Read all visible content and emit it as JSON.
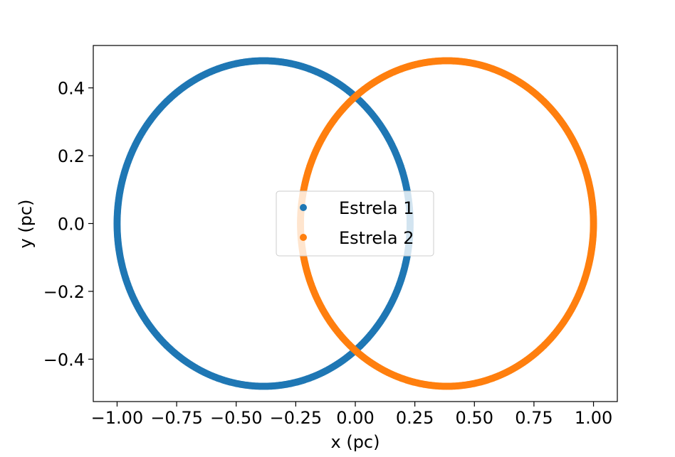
{
  "chart_data": {
    "type": "scatter",
    "title": "",
    "xlabel": "x (pc)",
    "ylabel": "y (pc)",
    "xlim": [
      -1.1,
      1.1
    ],
    "ylim": [
      -0.525,
      0.525
    ],
    "xticks": [
      -1.0,
      -0.75,
      -0.5,
      -0.25,
      0.0,
      0.25,
      0.5,
      0.75,
      1.0
    ],
    "xtick_labels": [
      "−1.00",
      "−0.75",
      "−0.50",
      "−0.25",
      "0.00",
      "0.25",
      "0.50",
      "0.75",
      "1.00"
    ],
    "yticks": [
      -0.4,
      -0.2,
      0.0,
      0.2,
      0.4
    ],
    "ytick_labels": [
      "−0.4",
      "−0.2",
      "0.0",
      "0.2",
      "0.4"
    ],
    "grid": false,
    "legend_position": "center",
    "series": [
      {
        "name": "Estrela 1",
        "color": "#1f77b4",
        "shape": "ellipse",
        "center": [
          -0.385,
          0.0
        ],
        "semi_axes": [
          0.615,
          0.48
        ],
        "x_range": [
          -1.0,
          0.23
        ],
        "y_range": [
          -0.48,
          0.48
        ]
      },
      {
        "name": "Estrela 2",
        "color": "#ff7f0e",
        "shape": "ellipse",
        "center": [
          0.385,
          0.0
        ],
        "semi_axes": [
          0.615,
          0.48
        ],
        "x_range": [
          -0.23,
          1.0
        ],
        "y_range": [
          -0.48,
          0.48
        ]
      }
    ]
  }
}
